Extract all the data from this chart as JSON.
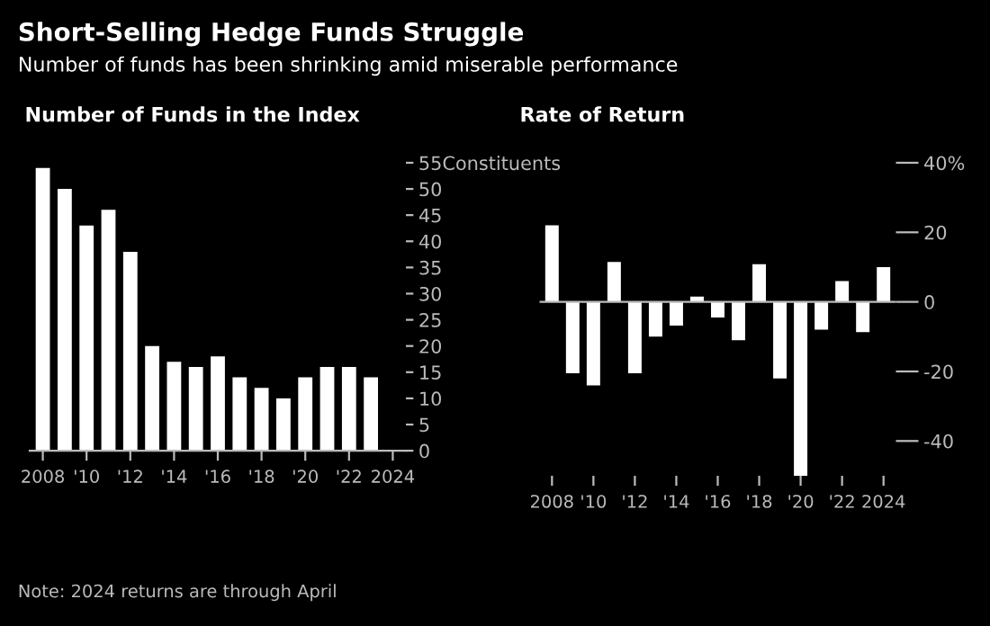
{
  "chart_data": [
    {
      "type": "other",
      "title": "Short-Selling Hedge Funds Struggle",
      "subtitle": "Number of funds has been shrinking amid miserable performance",
      "annotations": [
        "Note: 2024 returns are through April"
      ]
    },
    {
      "type": "bar",
      "title": "Number of Funds in the Index",
      "categories": [
        "2008",
        null,
        "'10",
        null,
        "'12",
        null,
        "'14",
        null,
        "'16",
        null,
        "'18",
        null,
        "'20",
        null,
        "'22",
        null,
        "2024"
      ],
      "values": [
        54,
        50,
        43,
        46,
        38,
        20,
        17,
        16,
        18,
        14,
        12,
        10,
        14,
        16,
        16,
        14,
        null
      ],
      "color": "#ffffff",
      "ylim": [
        0,
        55
      ],
      "yticks": [
        0,
        5,
        10,
        15,
        20,
        25,
        30,
        35,
        40,
        45,
        50,
        {
          "value": 55,
          "label": "55Constituents"
        }
      ],
      "grid": false,
      "legend": false
    },
    {
      "type": "bar",
      "title": "Rate of Return",
      "categories": [
        "2008",
        null,
        "'10",
        null,
        "'12",
        null,
        "'14",
        null,
        "'16",
        null,
        "'18",
        null,
        "'20",
        null,
        "'22",
        null,
        "2024"
      ],
      "values": [
        22,
        -20.5,
        -24,
        11.5,
        -20.5,
        -10,
        -6.8,
        1.5,
        -4.5,
        -11,
        10.8,
        -22,
        -50,
        -8,
        6,
        -8.7,
        10
      ],
      "color": "#ffffff",
      "ylim": [
        -50,
        40
      ],
      "ref_lines": [
        {
          "axis": "y",
          "value": 0,
          "color": "#bbbbbb"
        }
      ],
      "yticks": [
        {
          "value": -40,
          "label": "-40"
        },
        {
          "value": -20,
          "label": "-20"
        },
        0,
        20,
        {
          "value": 40,
          "label": "40%"
        }
      ],
      "grid": false,
      "legend": false
    }
  ]
}
